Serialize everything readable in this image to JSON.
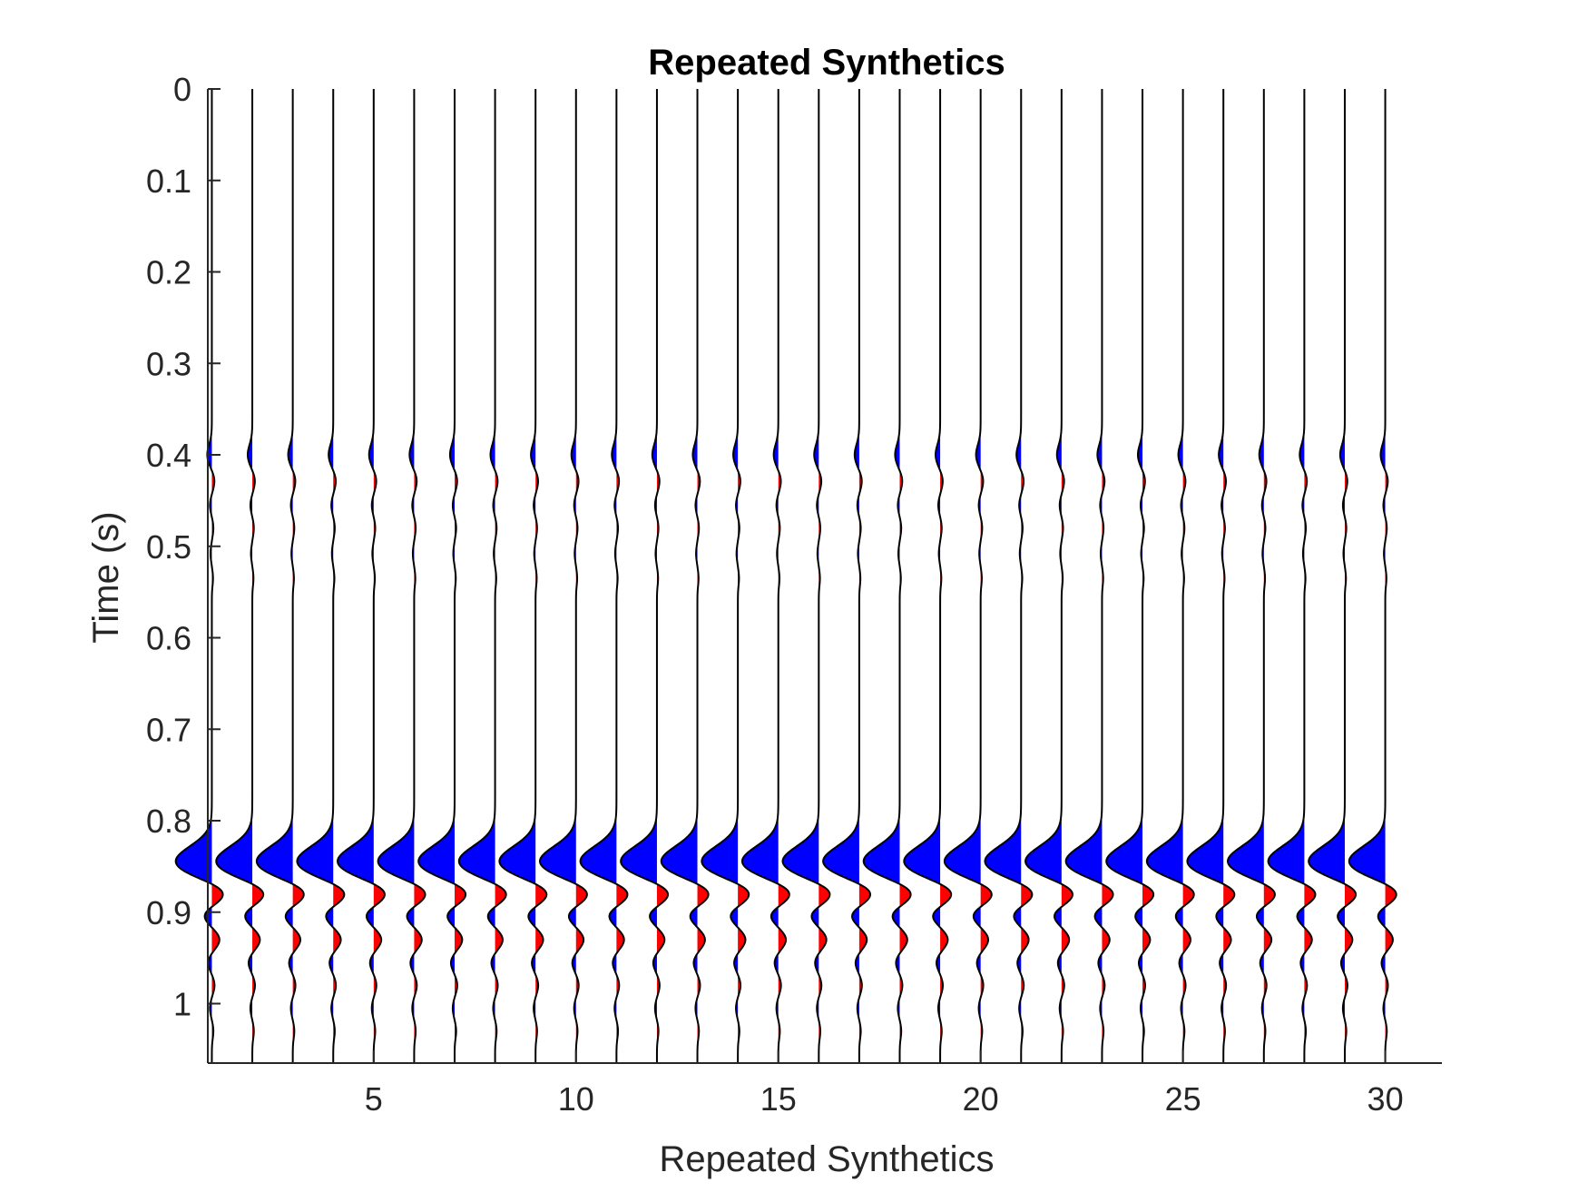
{
  "chart_data": {
    "type": "wiggle",
    "title": "Repeated Synthetics",
    "xlabel": "Repeated Synthetics",
    "ylabel": "Time (s)",
    "xlim": [
      0.9,
      31.4
    ],
    "ylim": [
      1.065,
      0
    ],
    "y_reversed": true,
    "xticks": [
      5,
      10,
      15,
      20,
      25,
      30
    ],
    "xtick_labels": [
      "5",
      "10",
      "15",
      "20",
      "25",
      "30"
    ],
    "yticks": [
      0,
      0.1,
      0.2,
      0.3,
      0.4,
      0.5,
      0.6,
      0.7,
      0.8,
      0.9,
      1.0
    ],
    "ytick_labels": [
      "0",
      "0.1",
      "0.2",
      "0.3",
      "0.4",
      "0.5",
      "0.6",
      "0.7",
      "0.8",
      "0.9",
      "1"
    ],
    "trace_count": 30,
    "trace_positions": [
      1,
      2,
      3,
      4,
      5,
      6,
      7,
      8,
      9,
      10,
      11,
      12,
      13,
      14,
      15,
      16,
      17,
      18,
      19,
      20,
      21,
      22,
      23,
      24,
      25,
      26,
      27,
      28,
      29,
      30
    ],
    "wavelet_events": [
      {
        "time": 0.4,
        "amplitude": -0.12,
        "width": 0.011
      },
      {
        "time": 0.428,
        "amplitude": 0.07,
        "width": 0.009
      },
      {
        "time": 0.455,
        "amplitude": -0.05,
        "width": 0.008
      },
      {
        "time": 0.48,
        "amplitude": 0.04,
        "width": 0.008
      },
      {
        "time": 0.508,
        "amplitude": -0.035,
        "width": 0.008
      },
      {
        "time": 0.535,
        "amplitude": 0.03,
        "width": 0.008
      },
      {
        "time": 0.845,
        "amplitude": -0.95,
        "width": 0.017
      },
      {
        "time": 0.877,
        "amplitude": 0.42,
        "width": 0.012
      },
      {
        "time": 0.903,
        "amplitude": -0.22,
        "width": 0.009
      },
      {
        "time": 0.93,
        "amplitude": 0.2,
        "width": 0.009
      },
      {
        "time": 0.955,
        "amplitude": -0.1,
        "width": 0.008
      },
      {
        "time": 0.98,
        "amplitude": 0.07,
        "width": 0.008
      },
      {
        "time": 1.005,
        "amplitude": -0.05,
        "width": 0.008
      },
      {
        "time": 1.03,
        "amplitude": 0.04,
        "width": 0.008
      }
    ],
    "fill_colors": {
      "negative": "#0000ff",
      "positive": "#ff0000",
      "trace": "#000000"
    },
    "grid": false,
    "legend": "none"
  }
}
